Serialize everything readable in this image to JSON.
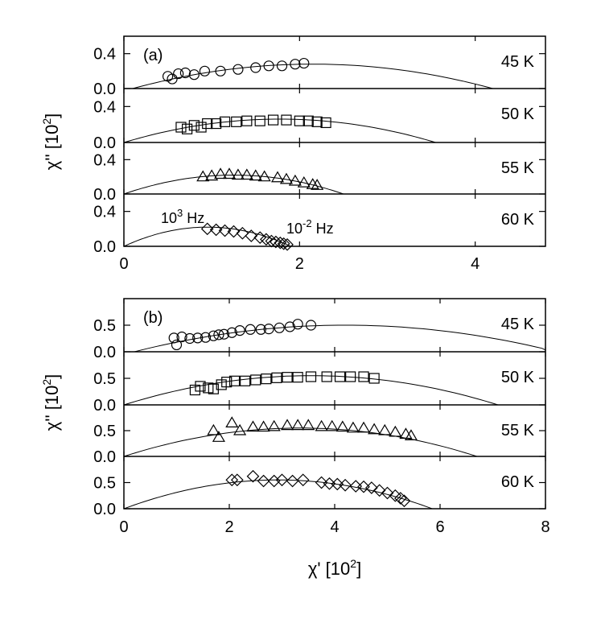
{
  "chart_data": [
    {
      "type": "scatter",
      "panel_label": "(a)",
      "xlabel": "χ' [10",
      "xlabel_sup": "2",
      "xlabel_close": "]",
      "ylabel": "χ'' [10",
      "ylabel_sup": "2",
      "ylabel_close": "]",
      "xlim": [
        0,
        4.8
      ],
      "xticks": [
        0,
        2,
        4
      ],
      "xtick_labels": [
        "0",
        "2",
        "4"
      ],
      "ylim": [
        0,
        0.6
      ],
      "yticks": [
        0.0,
        0.4
      ],
      "ytick_labels": [
        "0.0",
        "0.4"
      ],
      "annotations": [
        {
          "text": "10",
          "sup": "3",
          "rest": " Hz"
        },
        {
          "text": "10",
          "sup": "-2",
          "rest": " Hz"
        }
      ],
      "series": [
        {
          "name": "45 K",
          "marker": "circle",
          "arc": {
            "x0": 0.1,
            "x1": 4.2,
            "peak": 0.28
          },
          "points": [
            [
              0.5,
              0.14
            ],
            [
              0.55,
              0.11
            ],
            [
              0.62,
              0.17
            ],
            [
              0.7,
              0.18
            ],
            [
              0.8,
              0.16
            ],
            [
              0.92,
              0.2
            ],
            [
              1.1,
              0.2
            ],
            [
              1.3,
              0.22
            ],
            [
              1.5,
              0.24
            ],
            [
              1.65,
              0.26
            ],
            [
              1.8,
              0.26
            ],
            [
              1.95,
              0.28
            ],
            [
              2.05,
              0.29
            ]
          ]
        },
        {
          "name": "50 K",
          "marker": "square",
          "arc": {
            "x0": 0.0,
            "x1": 3.55,
            "peak": 0.26
          },
          "points": [
            [
              0.65,
              0.17
            ],
            [
              0.72,
              0.15
            ],
            [
              0.8,
              0.19
            ],
            [
              0.88,
              0.17
            ],
            [
              0.95,
              0.21
            ],
            [
              1.05,
              0.21
            ],
            [
              1.15,
              0.23
            ],
            [
              1.28,
              0.23
            ],
            [
              1.4,
              0.24
            ],
            [
              1.55,
              0.24
            ],
            [
              1.7,
              0.25
            ],
            [
              1.85,
              0.25
            ],
            [
              2.0,
              0.24
            ],
            [
              2.1,
              0.24
            ],
            [
              2.2,
              0.23
            ],
            [
              2.3,
              0.22
            ]
          ]
        },
        {
          "name": "55 K",
          "marker": "triangle",
          "arc": {
            "x0": 0.0,
            "x1": 2.5,
            "peak": 0.22
          },
          "points": [
            [
              0.9,
              0.2
            ],
            [
              1.0,
              0.21
            ],
            [
              1.1,
              0.23
            ],
            [
              1.2,
              0.23
            ],
            [
              1.3,
              0.22
            ],
            [
              1.4,
              0.22
            ],
            [
              1.5,
              0.21
            ],
            [
              1.6,
              0.2
            ],
            [
              1.75,
              0.19
            ],
            [
              1.85,
              0.17
            ],
            [
              1.95,
              0.15
            ],
            [
              2.05,
              0.13
            ],
            [
              2.15,
              0.11
            ],
            [
              2.2,
              0.1
            ]
          ]
        },
        {
          "name": "60 K",
          "marker": "diamond",
          "arc": {
            "x0": 0.0,
            "x1": 1.9,
            "peak": 0.22
          },
          "points": [
            [
              0.95,
              0.2
            ],
            [
              1.05,
              0.19
            ],
            [
              1.15,
              0.18
            ],
            [
              1.25,
              0.17
            ],
            [
              1.35,
              0.15
            ],
            [
              1.45,
              0.12
            ],
            [
              1.55,
              0.1
            ],
            [
              1.62,
              0.08
            ],
            [
              1.68,
              0.06
            ],
            [
              1.73,
              0.05
            ],
            [
              1.78,
              0.04
            ],
            [
              1.82,
              0.03
            ],
            [
              1.86,
              0.02
            ]
          ]
        }
      ]
    },
    {
      "type": "scatter",
      "panel_label": "(b)",
      "xlabel": "χ' [10",
      "xlabel_sup": "2",
      "xlabel_close": "]",
      "ylabel": "χ'' [10",
      "ylabel_sup": "2",
      "ylabel_close": "]",
      "xlim": [
        0,
        8
      ],
      "xticks": [
        0,
        2,
        4,
        6,
        8
      ],
      "xtick_labels": [
        "0",
        "2",
        "4",
        "6",
        "8"
      ],
      "ylim": [
        0,
        1.0
      ],
      "yticks": [
        0.0,
        0.5
      ],
      "ytick_labels": [
        "0.0",
        "0.5"
      ],
      "series": [
        {
          "name": "45 K",
          "marker": "circle",
          "arc": {
            "x0": 0.2,
            "x1": 8.2,
            "peak": 0.5
          },
          "points": [
            [
              0.95,
              0.26
            ],
            [
              1.0,
              0.13
            ],
            [
              1.1,
              0.28
            ],
            [
              1.25,
              0.25
            ],
            [
              1.4,
              0.26
            ],
            [
              1.55,
              0.27
            ],
            [
              1.7,
              0.3
            ],
            [
              1.8,
              0.32
            ],
            [
              1.9,
              0.33
            ],
            [
              2.05,
              0.36
            ],
            [
              2.2,
              0.4
            ],
            [
              2.4,
              0.42
            ],
            [
              2.6,
              0.42
            ],
            [
              2.75,
              0.43
            ],
            [
              2.95,
              0.45
            ],
            [
              3.15,
              0.47
            ],
            [
              3.3,
              0.52
            ],
            [
              3.55,
              0.5
            ]
          ]
        },
        {
          "name": "50 K",
          "marker": "square",
          "arc": {
            "x0": 0.0,
            "x1": 7.1,
            "peak": 0.55
          },
          "points": [
            [
              1.35,
              0.28
            ],
            [
              1.45,
              0.35
            ],
            [
              1.6,
              0.32
            ],
            [
              1.7,
              0.3
            ],
            [
              1.85,
              0.38
            ],
            [
              1.95,
              0.43
            ],
            [
              2.1,
              0.45
            ],
            [
              2.3,
              0.45
            ],
            [
              2.5,
              0.47
            ],
            [
              2.7,
              0.49
            ],
            [
              2.9,
              0.51
            ],
            [
              3.1,
              0.52
            ],
            [
              3.3,
              0.52
            ],
            [
              3.55,
              0.53
            ],
            [
              3.85,
              0.53
            ],
            [
              4.1,
              0.53
            ],
            [
              4.3,
              0.53
            ],
            [
              4.55,
              0.53
            ],
            [
              4.75,
              0.5
            ]
          ]
        },
        {
          "name": "55 K",
          "marker": "triangle",
          "arc": {
            "x0": 0.0,
            "x1": 6.7,
            "peak": 0.55
          },
          "points": [
            [
              1.7,
              0.5
            ],
            [
              1.8,
              0.37
            ],
            [
              2.05,
              0.65
            ],
            [
              2.2,
              0.5
            ],
            [
              2.45,
              0.57
            ],
            [
              2.65,
              0.57
            ],
            [
              2.85,
              0.58
            ],
            [
              3.1,
              0.6
            ],
            [
              3.3,
              0.6
            ],
            [
              3.5,
              0.6
            ],
            [
              3.75,
              0.58
            ],
            [
              3.95,
              0.58
            ],
            [
              4.15,
              0.57
            ],
            [
              4.35,
              0.55
            ],
            [
              4.55,
              0.55
            ],
            [
              4.75,
              0.52
            ],
            [
              4.95,
              0.5
            ],
            [
              5.15,
              0.47
            ],
            [
              5.35,
              0.43
            ],
            [
              5.45,
              0.4
            ]
          ]
        },
        {
          "name": "60 K",
          "marker": "diamond",
          "arc": {
            "x0": 0.0,
            "x1": 5.85,
            "peak": 0.55
          },
          "points": [
            [
              2.05,
              0.55
            ],
            [
              2.15,
              0.55
            ],
            [
              2.45,
              0.62
            ],
            [
              2.65,
              0.53
            ],
            [
              2.85,
              0.53
            ],
            [
              3.0,
              0.55
            ],
            [
              3.2,
              0.53
            ],
            [
              3.4,
              0.55
            ],
            [
              3.75,
              0.5
            ],
            [
              3.9,
              0.48
            ],
            [
              4.05,
              0.47
            ],
            [
              4.2,
              0.45
            ],
            [
              4.4,
              0.43
            ],
            [
              4.55,
              0.42
            ],
            [
              4.7,
              0.4
            ],
            [
              4.85,
              0.35
            ],
            [
              5.0,
              0.3
            ],
            [
              5.15,
              0.25
            ],
            [
              5.25,
              0.2
            ],
            [
              5.32,
              0.15
            ]
          ]
        }
      ]
    }
  ]
}
